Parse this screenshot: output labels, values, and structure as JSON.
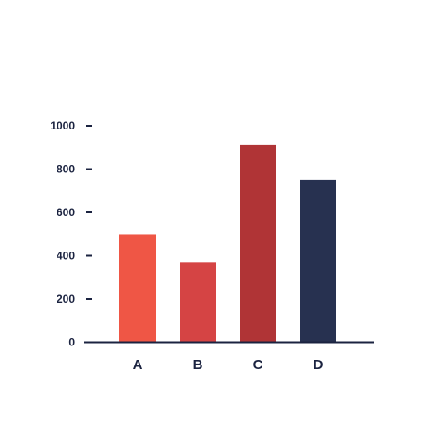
{
  "chart_data": {
    "type": "bar",
    "title": "",
    "xlabel": "",
    "ylabel": "",
    "categories": [
      "A",
      "B",
      "C",
      "D"
    ],
    "values": [
      497,
      367,
      912,
      752
    ],
    "ylim": [
      0,
      1000
    ],
    "yticks": [
      0,
      200,
      400,
      600,
      800,
      1000
    ],
    "ytick_labels": [
      "0",
      "200",
      "400",
      "600",
      "800",
      "1000"
    ],
    "bar_colors": [
      "#ef5645",
      "#d54444",
      "#b03436",
      "#273150"
    ],
    "axis_color": "#1b2340",
    "text_color": "#1b2340",
    "grid": false,
    "legend": "none"
  }
}
